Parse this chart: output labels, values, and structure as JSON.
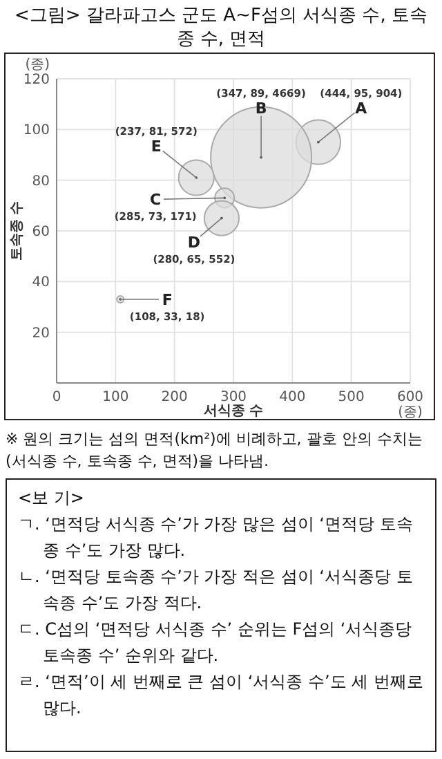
{
  "chart_data": {
    "type": "bubble",
    "title": "<그림> 갈라파고스 군도 A~F섬의 서식종 수, 토속종 수, 면적",
    "xlabel": "서식종 수",
    "ylabel": "토속종 수",
    "x": [
      444,
      347,
      285,
      280,
      237,
      108
    ],
    "series": [
      {
        "color": "#dcdcdc",
        "values": [
          95,
          89,
          73,
          65,
          81,
          33
        ],
        "sizes": [
          0.194,
          1,
          0.037,
          0.118,
          0.123,
          0.004
        ],
        "value_labels": [
          "(444, 95, 904)",
          "(347, 89, 4669)",
          "(285, 73, 171)",
          "(280, 65, 552)",
          "(237, 81, 572)",
          "(108, 33, 18)"
        ]
      }
    ],
    "xlim": [
      0,
      600
    ],
    "ylim": [
      0,
      120
    ],
    "xticks": [
      0,
      100,
      200,
      300,
      400,
      500,
      {
        "value": 600,
        "label": "600\n(종)"
      }
    ],
    "yticks": [
      20,
      40,
      60,
      80,
      100,
      {
        "value": 120,
        "label": "(종)\n120"
      }
    ],
    "grid": true,
    "annotations": [
      {
        "text": "A",
        "x": 444,
        "y": 95
      },
      {
        "text": "B",
        "x": 347,
        "y": 89
      },
      {
        "text": "C",
        "x": 285,
        "y": 73
      },
      {
        "text": "D",
        "x": 280,
        "y": 65
      },
      {
        "text": "E",
        "x": 237,
        "y": 81
      },
      {
        "text": "F",
        "x": 108,
        "y": 33
      },
      "※ 원의 크기는 섬의 면적(km²)에 비례하고, 괄호 안의 수치는 (서식종 수, 토속종 수, 면적)을 나타냄.",
      "<보  기>",
      "ㄱ. ‘면적당 서식종 수’가 가장 많은 섬이 ‘면적당 토속종 수’도 가장 많다.",
      "ㄴ. ‘면적당 토속종 수’가 가장 적은 섬이 ‘서식종당 토속종 수’도 가장 적다.",
      "ㄷ. C섬의 ‘면적당 서식종 수’ 순위는 F섬의 ‘서식종당 토속종 수’ 순위와 같다.",
      "ㄹ. ‘면적’이 세 번째로 큰 섬이 ‘서식종 수’도 세 번째로 많다."
    ]
  }
}
